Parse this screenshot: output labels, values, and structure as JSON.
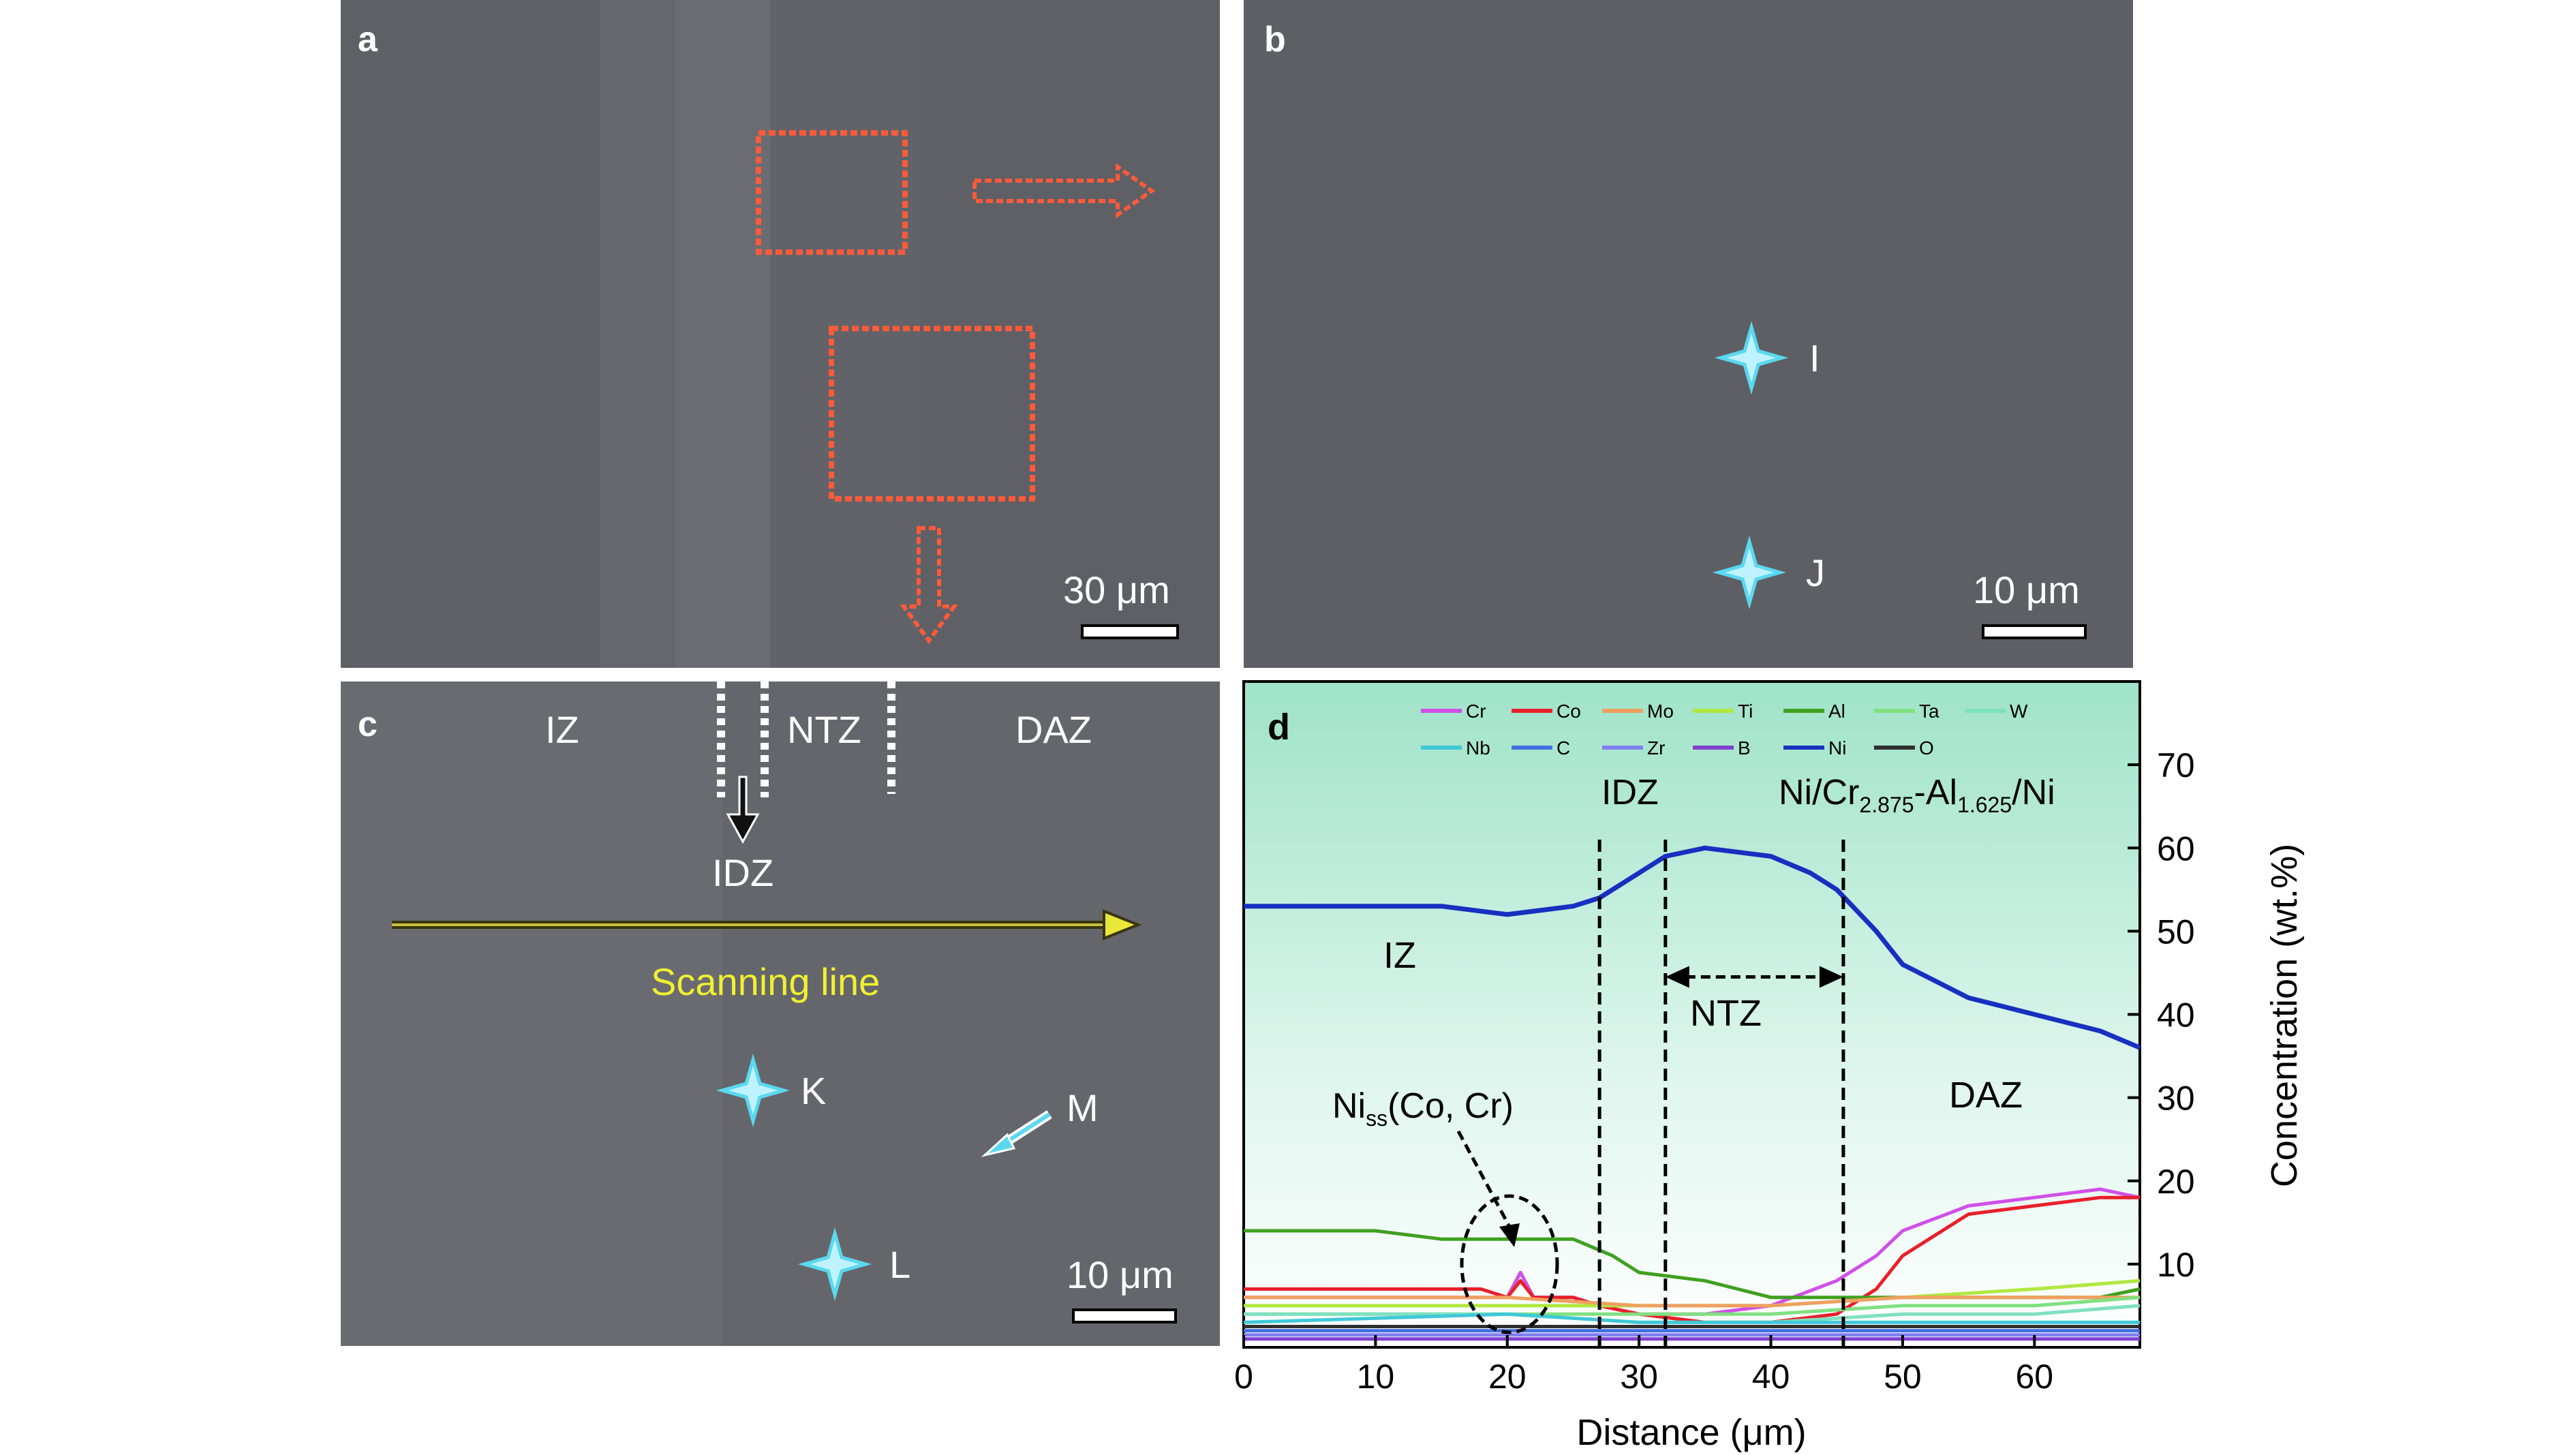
{
  "panels": {
    "a": {
      "label": "a",
      "scale_bar": "30 μm"
    },
    "b": {
      "label": "b",
      "scale_bar": "10 μm",
      "points": [
        "I",
        "J"
      ]
    },
    "c": {
      "label": "c",
      "scale_bar": "10 μm",
      "zones": [
        "IZ",
        "NTZ",
        "DAZ"
      ],
      "idz": "IDZ",
      "scan_label": "Scanning line",
      "points": [
        "K",
        "L",
        "M"
      ]
    },
    "d": {
      "label": "d"
    }
  },
  "colors": {
    "scan_line": "#e8e83a",
    "box": "#ff5a3a",
    "marker": "#5ad8f0"
  },
  "chart_data": {
    "type": "line",
    "xlabel": "Distance (μm)",
    "ylabel": "Concentration (wt.%)",
    "xlim": [
      0,
      68
    ],
    "ylim": [
      0,
      80
    ],
    "xticks": [
      0,
      10,
      20,
      30,
      40,
      50,
      60
    ],
    "yticks": [
      10,
      20,
      30,
      40,
      50,
      60,
      70
    ],
    "legend": [
      {
        "name": "Cr",
        "color": "#d050e8"
      },
      {
        "name": "Co",
        "color": "#e8202a"
      },
      {
        "name": "Mo",
        "color": "#f0a060"
      },
      {
        "name": "Ti",
        "color": "#b0e840"
      },
      {
        "name": "Al",
        "color": "#40a020"
      },
      {
        "name": "Ta",
        "color": "#80e080"
      },
      {
        "name": "W",
        "color": "#80e0c0"
      },
      {
        "name": "Nb",
        "color": "#40c8d8"
      },
      {
        "name": "C",
        "color": "#4070e0"
      },
      {
        "name": "Zr",
        "color": "#8080f0"
      },
      {
        "name": "B",
        "color": "#8040d0"
      },
      {
        "name": "Ni",
        "color": "#1830c0"
      },
      {
        "name": "O",
        "color": "#303030"
      }
    ],
    "series": [
      {
        "name": "Ni",
        "color": "#1830c0",
        "x": [
          0,
          5,
          10,
          15,
          20,
          25,
          27,
          30,
          32,
          35,
          40,
          43,
          45,
          48,
          50,
          55,
          60,
          65,
          68
        ],
        "y": [
          53,
          53,
          53,
          53,
          52,
          53,
          54,
          57,
          59,
          60,
          59,
          57,
          55,
          50,
          46,
          42,
          40,
          38,
          36
        ]
      },
      {
        "name": "Cr",
        "color": "#d050e8",
        "x": [
          0,
          10,
          18,
          20,
          21,
          22,
          25,
          27,
          30,
          35,
          40,
          45,
          48,
          50,
          55,
          60,
          65,
          68
        ],
        "y": [
          6,
          6,
          6,
          6,
          9,
          6,
          6,
          5,
          4,
          4,
          5,
          8,
          11,
          14,
          17,
          18,
          19,
          18
        ]
      },
      {
        "name": "Co",
        "color": "#e8202a",
        "x": [
          0,
          10,
          18,
          20,
          21,
          22,
          25,
          27,
          30,
          35,
          40,
          45,
          48,
          50,
          55,
          60,
          65,
          68
        ],
        "y": [
          7,
          7,
          7,
          6,
          8,
          6,
          6,
          5,
          4,
          3,
          3,
          4,
          7,
          11,
          16,
          17,
          18,
          18
        ]
      },
      {
        "name": "Al",
        "color": "#40a020",
        "x": [
          0,
          10,
          15,
          20,
          25,
          28,
          30,
          35,
          40,
          45,
          50,
          55,
          60,
          65,
          68
        ],
        "y": [
          14,
          14,
          13,
          13,
          13,
          11,
          9,
          8,
          6,
          6,
          6,
          6,
          6,
          6,
          7
        ]
      },
      {
        "name": "Ti",
        "color": "#b0e840",
        "x": [
          0,
          20,
          30,
          40,
          50,
          60,
          68
        ],
        "y": [
          5,
          5,
          5,
          5,
          6,
          7,
          8
        ]
      },
      {
        "name": "Mo",
        "color": "#f0a060",
        "x": [
          0,
          20,
          30,
          40,
          50,
          60,
          68
        ],
        "y": [
          6,
          6,
          5,
          5,
          6,
          6,
          6
        ]
      },
      {
        "name": "Ta",
        "color": "#80e080",
        "x": [
          0,
          20,
          30,
          40,
          50,
          60,
          68
        ],
        "y": [
          4,
          4,
          4,
          4,
          5,
          5,
          6
        ]
      },
      {
        "name": "W",
        "color": "#80e0c0",
        "x": [
          0,
          20,
          30,
          40,
          50,
          60,
          68
        ],
        "y": [
          4,
          4,
          3,
          3,
          4,
          4,
          5
        ]
      },
      {
        "name": "Nb",
        "color": "#40c8d8",
        "x": [
          0,
          20,
          30,
          40,
          50,
          60,
          68
        ],
        "y": [
          3,
          4,
          3,
          3,
          3,
          3,
          3
        ]
      },
      {
        "name": "C",
        "color": "#4070e0",
        "x": [
          0,
          20,
          30,
          40,
          50,
          60,
          68
        ],
        "y": [
          2,
          2,
          2,
          2,
          2,
          2,
          2
        ]
      },
      {
        "name": "Zr",
        "color": "#8080f0",
        "x": [
          0,
          20,
          30,
          40,
          50,
          60,
          68
        ],
        "y": [
          1.5,
          1.5,
          1.5,
          1.5,
          1.5,
          1.5,
          1.5
        ]
      },
      {
        "name": "B",
        "color": "#8040d0",
        "x": [
          0,
          20,
          30,
          40,
          50,
          60,
          68
        ],
        "y": [
          1,
          1,
          1,
          1,
          1,
          1,
          1
        ]
      },
      {
        "name": "O",
        "color": "#303030",
        "x": [
          0,
          20,
          30,
          40,
          50,
          60,
          68
        ],
        "y": [
          2.5,
          2.5,
          2.5,
          2.5,
          2.5,
          2.5,
          2.5
        ]
      }
    ],
    "vlines": [
      27,
      32,
      45.5
    ],
    "annotations": {
      "idz": "IDZ",
      "phase_ni_cr": "Ni/Cr",
      "phase_cr_sub": "2.875",
      "phase_al": "-Al",
      "phase_al_sub": "1.625",
      "phase_tail": "/Ni",
      "iz": "IZ",
      "ntz": "NTZ",
      "daz": "DAZ",
      "niss": "Ni",
      "niss_sub": "ss",
      "niss_tail": "(Co, Cr)"
    }
  }
}
